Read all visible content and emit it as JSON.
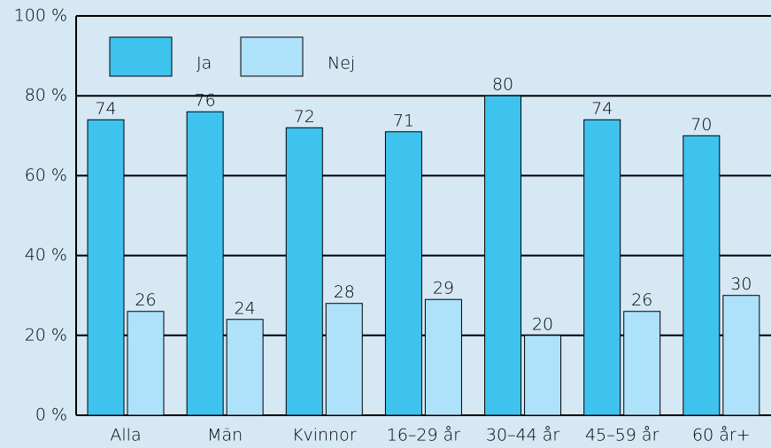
{
  "chart_data": {
    "type": "bar",
    "categories": [
      "Alla",
      "Män",
      "Kvinnor",
      "16–29 år",
      "30–44 år",
      "45–59 år",
      "60 år+"
    ],
    "series": [
      {
        "name": "Ja",
        "color": "#3ec3ef",
        "values": [
          74,
          76,
          72,
          71,
          80,
          74,
          70
        ]
      },
      {
        "name": "Nej",
        "color": "#aee2fb",
        "values": [
          26,
          24,
          28,
          29,
          20,
          26,
          30
        ]
      }
    ],
    "ylim": [
      0,
      100
    ],
    "yticks": [
      {
        "value": 0,
        "label": "0 %"
      },
      {
        "value": 20,
        "label": "20 %"
      },
      {
        "value": 40,
        "label": "40 %"
      },
      {
        "value": 60,
        "label": "60 %"
      },
      {
        "value": 80,
        "label": "80 %"
      },
      {
        "value": 100,
        "label": "100 %"
      }
    ],
    "grid": true,
    "legend": "top-left"
  }
}
